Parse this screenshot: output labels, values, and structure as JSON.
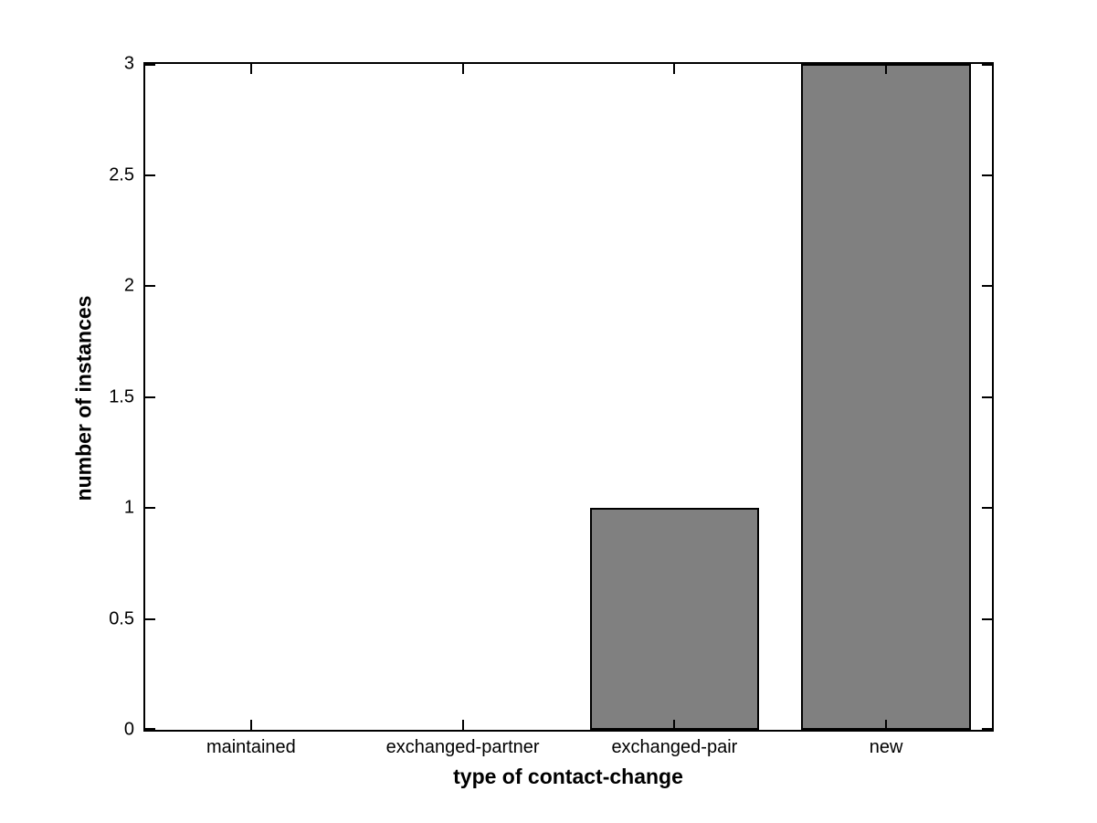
{
  "figure": {
    "background_color": "#ffffff",
    "axes_box_color": "#000000"
  },
  "chart_data": {
    "type": "bar",
    "title": "",
    "xlabel": "type of contact-change",
    "ylabel": "number of instances",
    "categories": [
      "maintained",
      "exchanged-partner",
      "exchanged-pair",
      "new"
    ],
    "values": [
      0,
      0,
      1,
      3
    ],
    "ylim": [
      0,
      3
    ],
    "yticks": [
      0,
      0.5,
      1,
      1.5,
      2,
      2.5,
      3
    ],
    "ytick_labels": [
      "0",
      "0.5",
      "1",
      "1.5",
      "2",
      "2.5",
      "3"
    ],
    "bar_color": "#808080",
    "bar_edge_color": "#000000",
    "bar_width_fraction": 0.8,
    "grid": false,
    "box": true,
    "tick_direction": "in",
    "legend": null
  }
}
